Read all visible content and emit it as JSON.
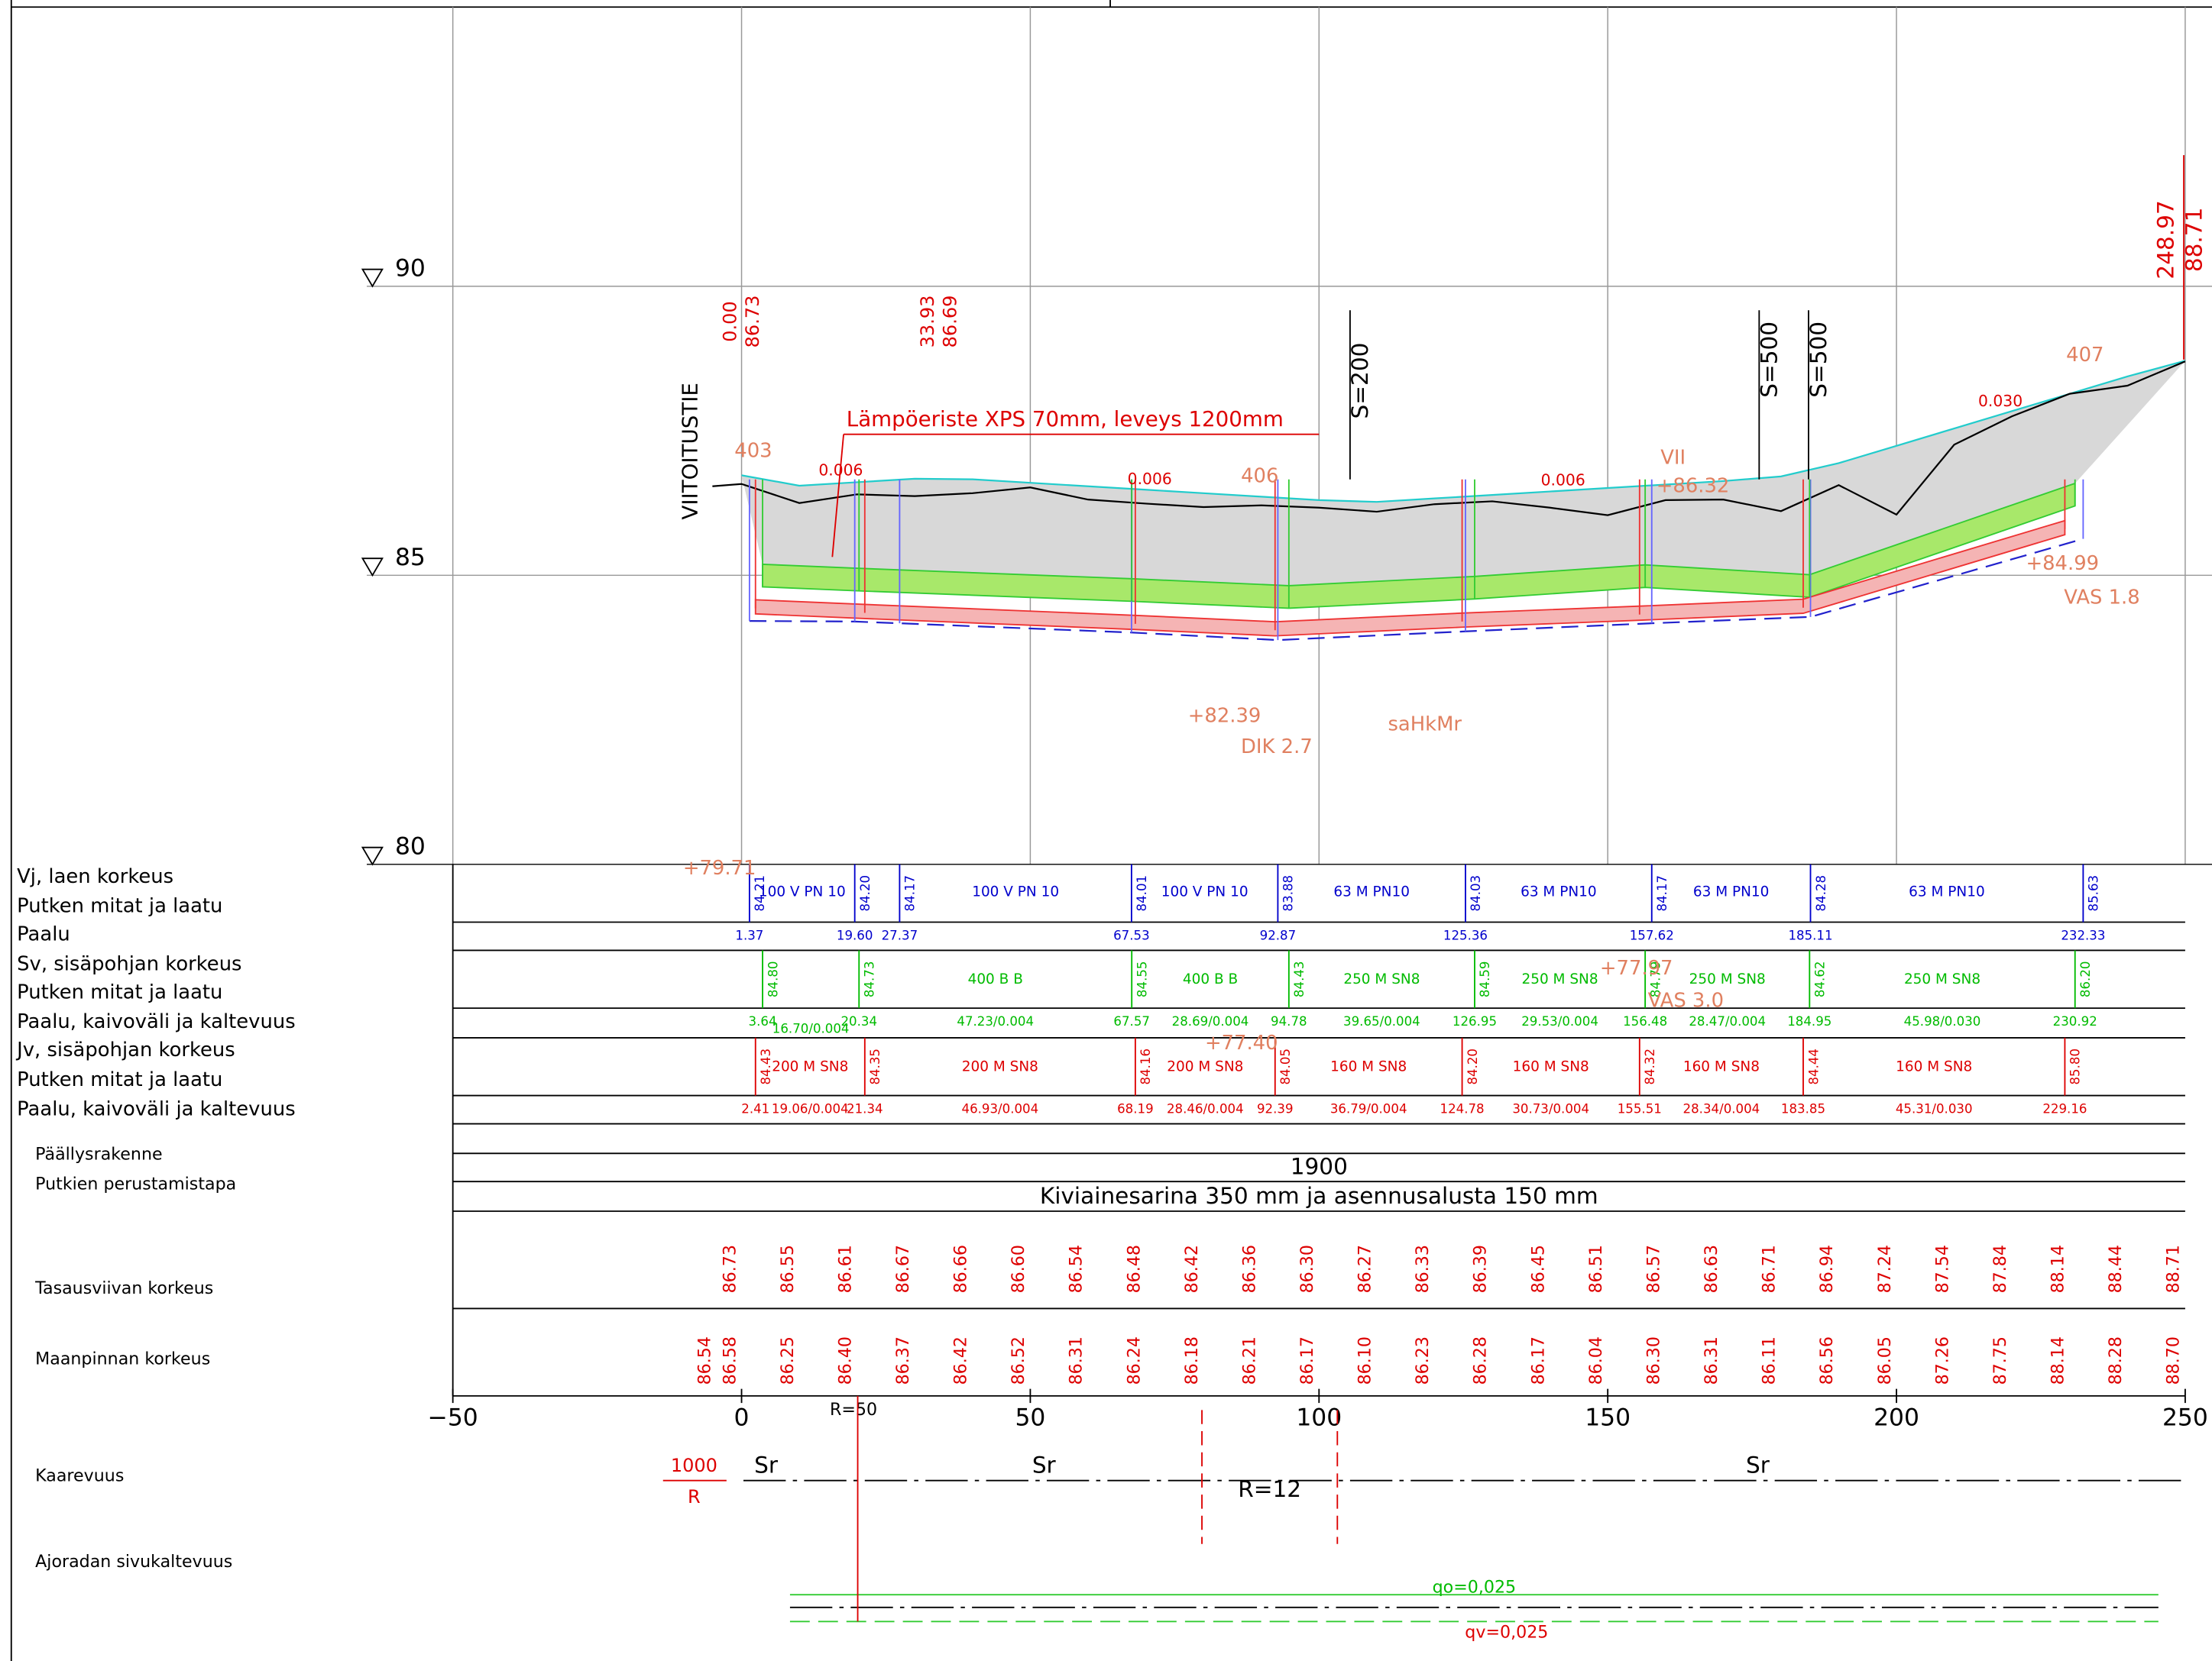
{
  "left_labels": [
    "Vj, laen korkeus",
    "Putken mitat ja laatu",
    "Paalu",
    "Sv, sisäpohjan korkeus",
    "Putken mitat ja laatu",
    "Paalu, kaivoväli ja kaltevuus",
    "Jv, sisäpohjan korkeus",
    "Putken mitat ja laatu",
    "Paalu, kaivoväli ja kaltevuus",
    "Päällysrakenne",
    "Putkien perustamistapa",
    "Tasausviivan korkeus",
    "Maanpinnan korkeus",
    "Kaarevuus",
    "Ajoradan sivukaltevuus"
  ],
  "elevation_marks": [
    "90",
    "85",
    "80"
  ],
  "x_axis": [
    "−50",
    "0",
    "50",
    "100",
    "150",
    "200",
    "250"
  ],
  "profile": {
    "road_name": "VIITOITUSTIE",
    "insulation": "Lämpöeriste XPS 70mm, leveys 1200mm",
    "start_station": "0.00",
    "start_level": "86.73",
    "mid_station": "33.93",
    "mid_level": "86.69",
    "end_station": "248.97",
    "end_level": "88.71",
    "slopes": [
      "0.006",
      "0.006",
      "0.006",
      "0.030"
    ],
    "vertical_curves": [
      "S=200",
      "S=500",
      "S=500"
    ],
    "notes": [
      "403",
      "406",
      "VII",
      "+86.32",
      "407",
      "+84.99",
      "VAS 1.8",
      "+82.39",
      "DIK 2.7",
      "saHkMr",
      "+79.71",
      "+77.97",
      "+77.40",
      "VAS 3.0"
    ]
  },
  "vj": [
    {
      "elev": "84.21",
      "paalu": "1.37",
      "pipe": "100 V PN 10"
    },
    {
      "elev": "84.20",
      "paalu": "19.60"
    },
    {
      "elev": "84.17",
      "paalu": "27.37",
      "pipe": "100 V PN 10"
    },
    {
      "elev": "84.01",
      "paalu": "67.53",
      "pipe": "100 V PN 10"
    },
    {
      "elev": "83.88",
      "paalu": "92.87",
      "pipe": "63 M PN10"
    },
    {
      "elev": "84.03",
      "paalu": "125.36",
      "pipe": "63 M PN10"
    },
    {
      "elev": "84.17",
      "paalu": "157.62",
      "pipe": "63 M PN10"
    },
    {
      "elev": "84.28",
      "paalu": "185.11",
      "pipe": "63 M PN10"
    },
    {
      "elev": "85.63",
      "paalu": "232.33"
    }
  ],
  "sv": [
    {
      "elev": "84.80",
      "paalu": "3.64",
      "span": "16.70/0.004"
    },
    {
      "elev": "84.73",
      "paalu": "20.34",
      "pipe": "400 B B",
      "span": "47.23/0.004"
    },
    {
      "elev": "84.55",
      "paalu": "67.57",
      "pipe": "400 B B",
      "span": "28.69/0.004"
    },
    {
      "elev": "84.43",
      "paalu": "94.78",
      "pipe": "250 M SN8",
      "span": "39.65/0.004"
    },
    {
      "elev": "84.59",
      "paalu": "126.95",
      "pipe": "250 M SN8",
      "span": "29.53/0.004"
    },
    {
      "elev": "84.79",
      "paalu": "156.48",
      "pipe": "250 M SN8",
      "span": "28.47/0.004"
    },
    {
      "elev": "84.62",
      "paalu": "184.95",
      "pipe": "250 M SN8",
      "span": "45.98/0.030"
    },
    {
      "elev": "86.20",
      "paalu": "230.92"
    }
  ],
  "jv": [
    {
      "elev": "84.43",
      "paalu": "2.41",
      "pipe": "200 M SN8",
      "span": "19.06/0.004"
    },
    {
      "elev": "84.35",
      "paalu": "21.34",
      "pipe": "200 M SN8",
      "span": "46.93/0.004"
    },
    {
      "elev": "84.16",
      "paalu": "68.19",
      "pipe": "200 M SN8",
      "span": "28.46/0.004"
    },
    {
      "elev": "84.05",
      "paalu": "92.39",
      "pipe": "160 M SN8",
      "span": "36.79/0.004"
    },
    {
      "elev": "84.20",
      "paalu": "124.78",
      "pipe": "160 M SN8",
      "span": "30.73/0.004"
    },
    {
      "elev": "84.32",
      "paalu": "155.51",
      "pipe": "160 M SN8",
      "span": "28.34/0.004"
    },
    {
      "elev": "84.44",
      "paalu": "183.85",
      "pipe": "160 M SN8",
      "span": "45.31/0.030"
    },
    {
      "elev": "85.80",
      "paalu": "229.16"
    }
  ],
  "surface_structure": "1900",
  "foundation": "Kiviainesarina 350 mm ja asennusalusta 150 mm",
  "design_levels": [
    "86.73",
    "86.55",
    "86.61",
    "86.67",
    "86.66",
    "86.60",
    "86.54",
    "86.48",
    "86.42",
    "86.36",
    "86.30",
    "86.27",
    "86.33",
    "86.39",
    "86.45",
    "86.51",
    "86.57",
    "86.63",
    "86.71",
    "86.94",
    "87.24",
    "87.54",
    "87.84",
    "88.14",
    "88.44",
    "88.71"
  ],
  "ground_start": "86.54",
  "ground_levels": [
    "86.58",
    "86.25",
    "86.40",
    "86.37",
    "86.42",
    "86.52",
    "86.31",
    "86.24",
    "86.18",
    "86.21",
    "86.17",
    "86.10",
    "86.23",
    "86.28",
    "86.17",
    "86.04",
    "86.30",
    "86.31",
    "86.11",
    "86.56",
    "86.05",
    "87.26",
    "87.75",
    "88.14",
    "88.28",
    "88.70"
  ],
  "curvature": {
    "radius": "1000",
    "r": "R",
    "types": [
      "Sr",
      "Sr",
      "Sr"
    ],
    "r50": "R=50",
    "r12": "R=12"
  },
  "cross_slope": {
    "qo": "qo=0,025",
    "qv": "qv=0,025"
  }
}
